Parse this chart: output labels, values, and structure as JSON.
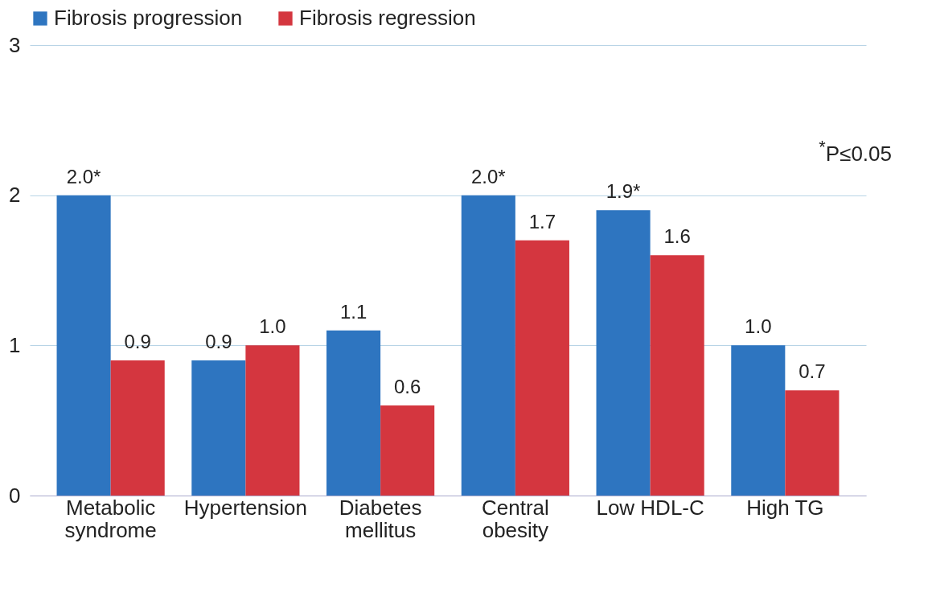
{
  "chart_data": {
    "type": "bar",
    "categories": [
      "Metabolic syndrome",
      "Hypertension",
      "Diabetes mellitus",
      "Central obesity",
      "Low HDL-C",
      "High TG"
    ],
    "series": [
      {
        "name": "Fibrosis progression",
        "color": "#2e75c0",
        "values": [
          2.0,
          0.9,
          1.1,
          2.0,
          1.9,
          1.0
        ],
        "value_labels": [
          "2.0*",
          "0.9",
          "1.1",
          "2.0*",
          "1.9*",
          "1.0"
        ]
      },
      {
        "name": "Fibrosis regression",
        "color": "#d4363f",
        "values": [
          0.9,
          1.0,
          0.6,
          1.7,
          1.6,
          0.7
        ],
        "value_labels": [
          "0.9",
          "1.0",
          "0.6",
          "1.7",
          "1.6",
          "0.7"
        ]
      }
    ],
    "ylim": [
      0,
      3
    ],
    "yticks": [
      0,
      1,
      2,
      3
    ],
    "grid": "y",
    "legend": "top",
    "annotations": [
      "$^{*}$P≤0.05"
    ]
  }
}
